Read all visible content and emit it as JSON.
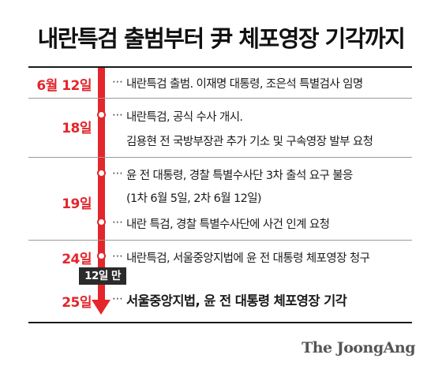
{
  "title": "내란특검 출범부터 尹 체포영장 기각까지",
  "badge": "12일 만",
  "logo": "The JoongAng",
  "accent_color": "#e3262b",
  "events": [
    {
      "date": "6월 12일",
      "lines": [
        "내란특검 출범. 이재명 대통령, 조은석 특별검사 임명"
      ]
    },
    {
      "date": "18일",
      "lines": [
        "내란특검, 공식 수사 개시.",
        "김용현 전 국방부장관 추가 기소 및 구속영장 발부 요청"
      ]
    },
    {
      "date": "19일",
      "lines": [
        "윤 전 대통령, 경찰 특별수사단 3차 출석 요구 불응",
        "(1차 6월 5일, 2차 6월 12일)",
        "내란 특검, 경찰 특별수사단에 사건 인계 요청"
      ]
    },
    {
      "date": "24일",
      "lines": [
        "내란특검, 서울중앙지법에 윤 전 대통령 체포영장 청구"
      ]
    },
    {
      "date": "25일",
      "lines": [
        "서울중앙지법, 윤 전 대통령 체포영장 기각"
      ]
    }
  ]
}
